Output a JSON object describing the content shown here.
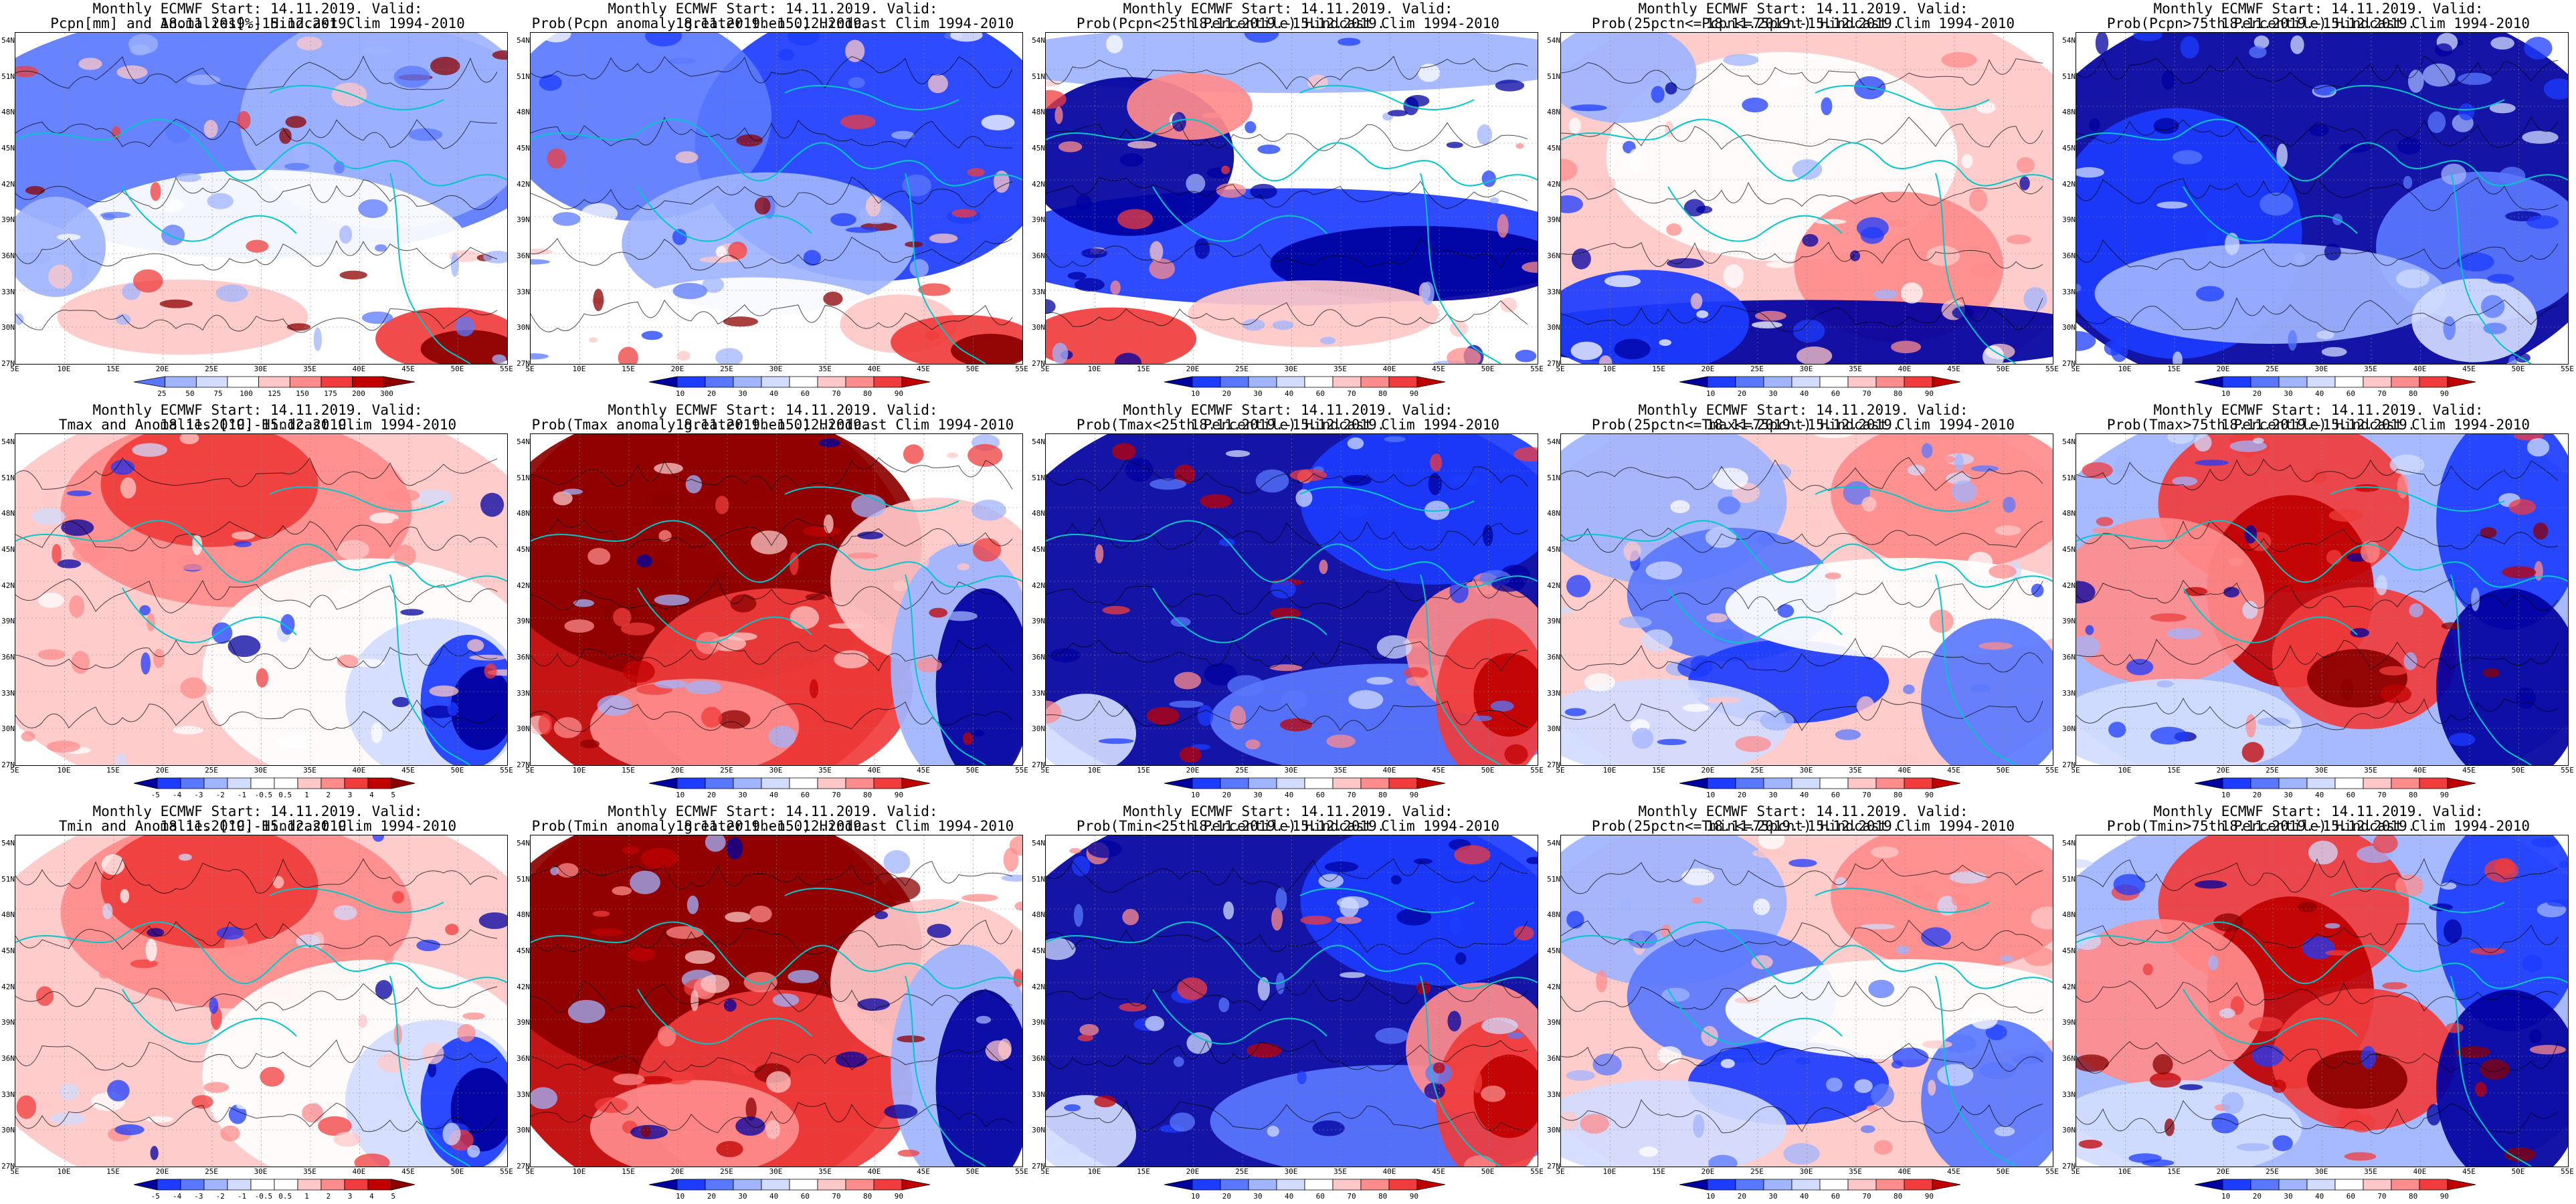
{
  "header_line": "Monthly ECMWF Start: 14.11.2019. Valid: 18.11.2019.-15.12.2019.",
  "lon_labels": [
    "5E",
    "10E",
    "15E",
    "20E",
    "25E",
    "30E",
    "35E",
    "40E",
    "45E",
    "50E",
    "55E"
  ],
  "lat_labels": [
    "54N",
    "51N",
    "48N",
    "45N",
    "42N",
    "39N",
    "36N",
    "33N",
    "30N",
    "27N"
  ],
  "colors": {
    "deep_blue": "#0000a0",
    "blue": "#1c3cff",
    "mid_blue": "#5a78ff",
    "light_blue": "#a0b4ff",
    "pale_blue": "#d2dcff",
    "white": "#ffffff",
    "pale_red": "#ffc8c8",
    "light_red": "#ff8c8c",
    "red": "#f03c3c",
    "dark_red": "#c00000",
    "deep_red": "#8c0000",
    "coast": "#00c8c8",
    "contour": "#000000"
  },
  "colorbars": {
    "precip": [
      "25",
      "50",
      "75",
      "100",
      "125",
      "150",
      "175",
      "200",
      "300"
    ],
    "anomaly": [
      "-5",
      "-4",
      "-3",
      "-2",
      "-1",
      "-0.5",
      "0.5",
      "1",
      "2",
      "3",
      "4",
      "5"
    ],
    "prob": [
      "10",
      "20",
      "30",
      "40",
      "60",
      "70",
      "80",
      "90"
    ]
  },
  "panels": [
    {
      "title": "Pcpn[mm] and Anomalies[%] Hindcast Clim 1994-2010",
      "bar": "precip",
      "scheme": "precip"
    },
    {
      "title": "Prob(Pcpn anomaly greater then 0) Hindcast Clim 1994-2010",
      "bar": "prob",
      "scheme": "wet"
    },
    {
      "title": "Prob(Pcpn<25th Percentile) Hindcast Clim 1994-2010",
      "bar": "prob",
      "scheme": "mixed_dry"
    },
    {
      "title": "Prob(25pctn<=Pcpn<=75pcnt) Hindcast Clim 1994-2010",
      "bar": "prob",
      "scheme": "neutral"
    },
    {
      "title": "Prob(Pcpn>75th Percentile) Hindcast Clim 1994-2010",
      "bar": "prob",
      "scheme": "wet_strong"
    },
    {
      "title": "Tmax and Anomalies [°C] Hindcast Clim 1994-2010",
      "bar": "anomaly",
      "scheme": "warm_anom"
    },
    {
      "title": "Prob(Tmax anomaly greater then 0) Hindcast Clim 1994-2010",
      "bar": "prob",
      "scheme": "hot"
    },
    {
      "title": "Prob(Tmax<25th Percentile) Hindcast Clim 1994-2010",
      "bar": "prob",
      "scheme": "cold_prob"
    },
    {
      "title": "Prob(25pctn<=Tmax<=75pcnt) Hindcast Clim 1994-2010",
      "bar": "prob",
      "scheme": "mid_mixed"
    },
    {
      "title": "Prob(Tmax>75th Percentile) Hindcast Clim 1994-2010",
      "bar": "prob",
      "scheme": "upper_mixed"
    },
    {
      "title": "Tmin and Anomalies [°C] Hindcast Clim 1994-2010",
      "bar": "anomaly",
      "scheme": "warm_anom"
    },
    {
      "title": "Prob(Tmin anomaly greater then 0) Hindcast Clim 1994-2010",
      "bar": "prob",
      "scheme": "hot"
    },
    {
      "title": "Prob(Tmin<25th Percentile) Hindcast Clim 1994-2010",
      "bar": "prob",
      "scheme": "cold_prob"
    },
    {
      "title": "Prob(25pctn<=Tmin<=75pcnt) Hindcast Clim 1994-2010",
      "bar": "prob",
      "scheme": "mid_mixed"
    },
    {
      "title": "Prob(Tmin>75th Percentile) Hindcast Clim 1994-2010",
      "bar": "prob",
      "scheme": "upper_mixed"
    }
  ]
}
